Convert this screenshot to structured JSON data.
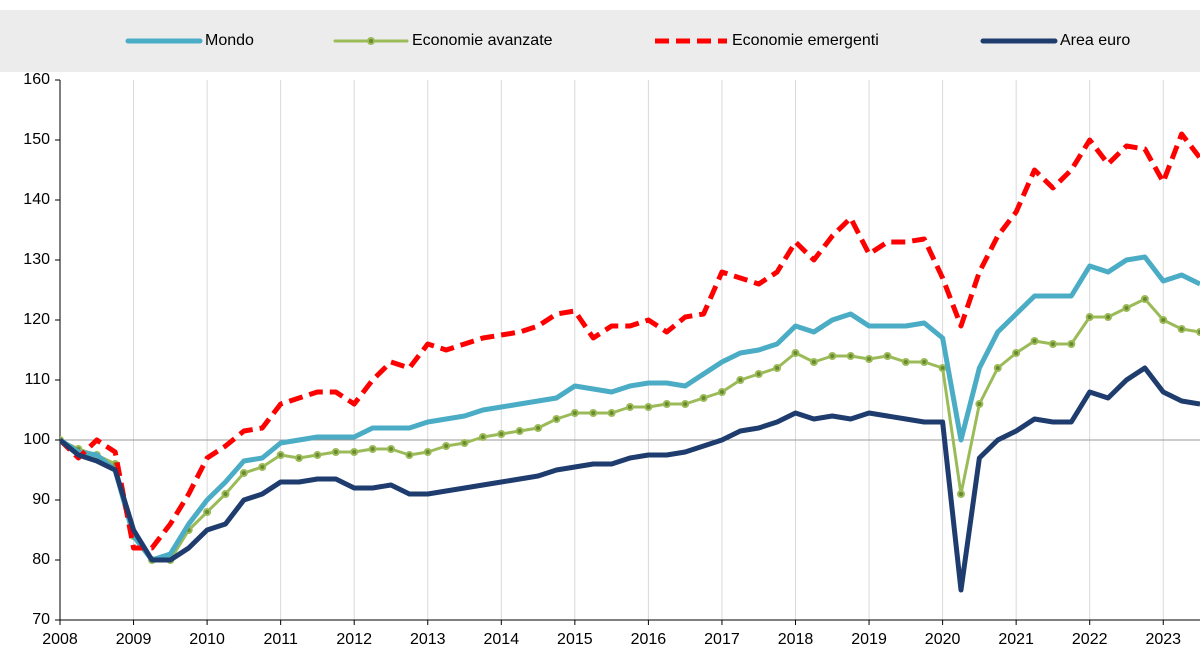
{
  "chart_data": {
    "type": "line",
    "x": [
      2008,
      2008.25,
      2008.5,
      2008.75,
      2009,
      2009.25,
      2009.5,
      2009.75,
      2010,
      2010.25,
      2010.5,
      2010.75,
      2011,
      2011.25,
      2011.5,
      2011.75,
      2012,
      2012.25,
      2012.5,
      2012.75,
      2013,
      2013.25,
      2013.5,
      2013.75,
      2014,
      2014.25,
      2014.5,
      2014.75,
      2015,
      2015.25,
      2015.5,
      2015.75,
      2016,
      2016.25,
      2016.5,
      2016.75,
      2017,
      2017.25,
      2017.5,
      2017.75,
      2018,
      2018.25,
      2018.5,
      2018.75,
      2019,
      2019.25,
      2019.5,
      2019.75,
      2020,
      2020.25,
      2020.5,
      2020.75,
      2021,
      2021.25,
      2021.5,
      2021.75,
      2022,
      2022.25,
      2022.5,
      2022.75,
      2023,
      2023.25,
      2023.5
    ],
    "series": [
      {
        "name": "Mondo",
        "color": "#4bacc6",
        "style": "solid",
        "width": 5,
        "values": [
          100,
          98,
          97.5,
          95,
          84,
          80,
          81,
          86,
          90,
          93,
          96.5,
          97,
          99.5,
          100,
          100.5,
          100.5,
          100.5,
          102,
          102,
          102,
          103,
          103.5,
          104,
          105,
          105.5,
          106,
          106.5,
          107,
          109,
          108.5,
          108,
          109,
          109.5,
          109.5,
          109,
          111,
          113,
          114.5,
          115,
          116,
          119,
          118,
          120,
          121,
          119,
          119,
          119,
          119.5,
          117,
          100,
          112,
          118,
          121,
          124,
          124,
          124,
          129,
          128,
          130,
          130.5,
          126.5,
          127.5,
          126
        ]
      },
      {
        "name": "Economie avanzate",
        "color": "#9bbb59",
        "style": "solid",
        "width": 3,
        "markers": true,
        "values": [
          100,
          98.5,
          97.5,
          96,
          84,
          80,
          80,
          85,
          88,
          91,
          94.5,
          95.5,
          97.5,
          97,
          97.5,
          98,
          98,
          98.5,
          98.5,
          97.5,
          98,
          99,
          99.5,
          100.5,
          101,
          101.5,
          102,
          103.5,
          104.5,
          104.5,
          104.5,
          105.5,
          105.5,
          106,
          106,
          107,
          108,
          110,
          111,
          112,
          114.5,
          113,
          114,
          114,
          113.5,
          114,
          113,
          113,
          112,
          91,
          106,
          112,
          114.5,
          116.5,
          116,
          116,
          120.5,
          120.5,
          122,
          123.5,
          120,
          118.5,
          118
        ]
      },
      {
        "name": "Economie emergenti",
        "color": "#ff0000",
        "style": "dashed",
        "width": 5,
        "values": [
          100,
          97,
          100,
          98,
          82,
          82,
          86,
          91,
          97,
          99,
          101.5,
          102,
          106,
          107,
          108,
          108,
          106,
          110,
          113,
          112,
          116,
          115,
          116,
          117,
          117.5,
          118,
          119,
          121,
          121.5,
          117,
          119,
          119,
          120,
          118,
          120.5,
          121,
          128,
          127,
          126,
          128,
          133,
          130,
          134,
          137,
          131,
          133,
          133,
          133.5,
          127,
          119,
          128,
          134,
          138,
          145,
          142,
          145,
          150,
          146,
          149,
          148.5,
          143,
          151,
          147
        ]
      },
      {
        "name": "Area euro",
        "color": "#1f3c6e",
        "style": "solid",
        "width": 5,
        "values": [
          100,
          97.5,
          96.5,
          95,
          85,
          80,
          80,
          82,
          85,
          86,
          90,
          91,
          93,
          93,
          93.5,
          93.5,
          92,
          92,
          92.5,
          91,
          91,
          91.5,
          92,
          92.5,
          93,
          93.5,
          94,
          95,
          95.5,
          96,
          96,
          97,
          97.5,
          97.5,
          98,
          99,
          100,
          101.5,
          102,
          103,
          104.5,
          103.5,
          104,
          103.5,
          104.5,
          104,
          103.5,
          103,
          103,
          75,
          97,
          100,
          101.5,
          103.5,
          103,
          103,
          108,
          107,
          110,
          112,
          108,
          106.5,
          106
        ]
      }
    ],
    "xlim": [
      2008,
      2023.5
    ],
    "xticks": [
      2008,
      2009,
      2010,
      2011,
      2012,
      2013,
      2014,
      2015,
      2016,
      2017,
      2018,
      2019,
      2020,
      2021,
      2022,
      2023
    ],
    "ylim": [
      70,
      160
    ],
    "yticks": [
      70,
      80,
      90,
      100,
      110,
      120,
      130,
      140,
      150,
      160
    ],
    "reference_line": 100,
    "grid": "x",
    "legend": "top"
  }
}
